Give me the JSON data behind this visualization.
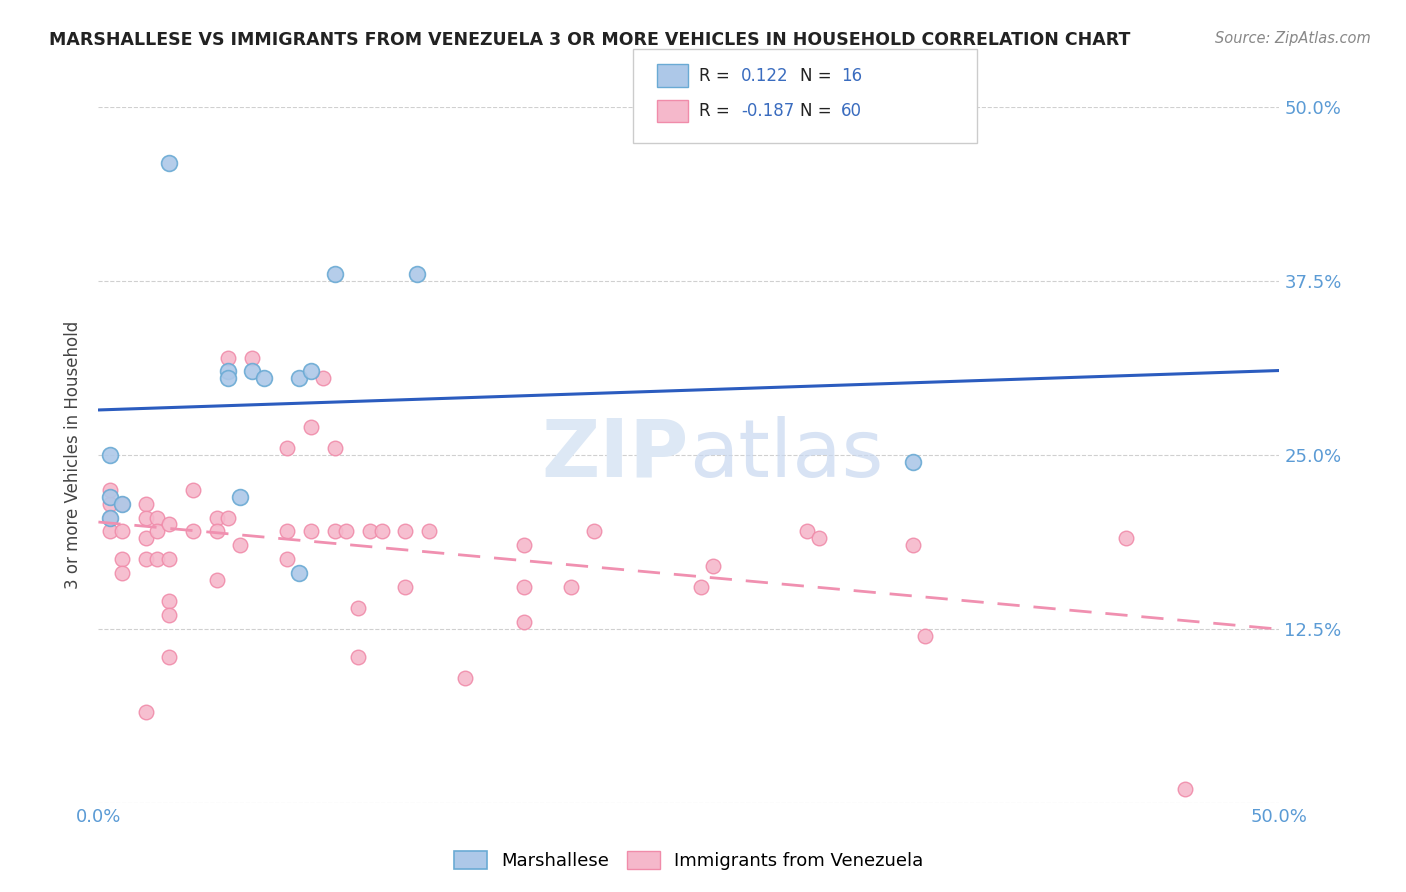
{
  "title": "MARSHALLESE VS IMMIGRANTS FROM VENEZUELA 3 OR MORE VEHICLES IN HOUSEHOLD CORRELATION CHART",
  "source": "Source: ZipAtlas.com",
  "ylabel": "3 or more Vehicles in Household",
  "xlim": [
    0.0,
    0.5
  ],
  "ylim": [
    0.0,
    0.5
  ],
  "legend_labels": [
    "Marshallese",
    "Immigrants from Venezuela"
  ],
  "marshallese_R": 0.122,
  "marshallese_N": 16,
  "venezuela_R": -0.187,
  "venezuela_N": 60,
  "marshallese_color": "#adc8e8",
  "marshallese_edge": "#6aaad4",
  "venezuela_color": "#f5b8cb",
  "venezuela_edge": "#f08caa",
  "trend_blue": "#2b5cbf",
  "trend_pink": "#f090b0",
  "watermark_color": "#dde8f5",
  "marshallese_x": [
    0.005,
    0.005,
    0.005,
    0.01,
    0.03,
    0.055,
    0.055,
    0.06,
    0.065,
    0.07,
    0.085,
    0.085,
    0.09,
    0.1,
    0.135,
    0.345
  ],
  "marshallese_y": [
    0.205,
    0.25,
    0.22,
    0.215,
    0.46,
    0.31,
    0.305,
    0.22,
    0.31,
    0.305,
    0.305,
    0.165,
    0.31,
    0.38,
    0.38,
    0.245
  ],
  "venezuela_x": [
    0.005,
    0.005,
    0.005,
    0.005,
    0.01,
    0.01,
    0.01,
    0.01,
    0.02,
    0.02,
    0.02,
    0.02,
    0.02,
    0.025,
    0.025,
    0.025,
    0.03,
    0.03,
    0.03,
    0.03,
    0.03,
    0.04,
    0.04,
    0.05,
    0.05,
    0.05,
    0.055,
    0.055,
    0.06,
    0.065,
    0.08,
    0.08,
    0.08,
    0.09,
    0.09,
    0.095,
    0.1,
    0.1,
    0.105,
    0.11,
    0.11,
    0.115,
    0.12,
    0.13,
    0.13,
    0.14,
    0.155,
    0.18,
    0.18,
    0.18,
    0.2,
    0.21,
    0.255,
    0.26,
    0.3,
    0.305,
    0.345,
    0.35,
    0.435,
    0.46
  ],
  "venezuela_y": [
    0.195,
    0.205,
    0.215,
    0.225,
    0.215,
    0.195,
    0.175,
    0.165,
    0.215,
    0.205,
    0.19,
    0.175,
    0.065,
    0.205,
    0.195,
    0.175,
    0.2,
    0.175,
    0.145,
    0.135,
    0.105,
    0.225,
    0.195,
    0.205,
    0.195,
    0.16,
    0.32,
    0.205,
    0.185,
    0.32,
    0.255,
    0.195,
    0.175,
    0.27,
    0.195,
    0.305,
    0.195,
    0.255,
    0.195,
    0.14,
    0.105,
    0.195,
    0.195,
    0.155,
    0.195,
    0.195,
    0.09,
    0.155,
    0.13,
    0.185,
    0.155,
    0.195,
    0.155,
    0.17,
    0.195,
    0.19,
    0.185,
    0.12,
    0.19,
    0.01
  ],
  "background_color": "#ffffff",
  "grid_color": "#cccccc"
}
